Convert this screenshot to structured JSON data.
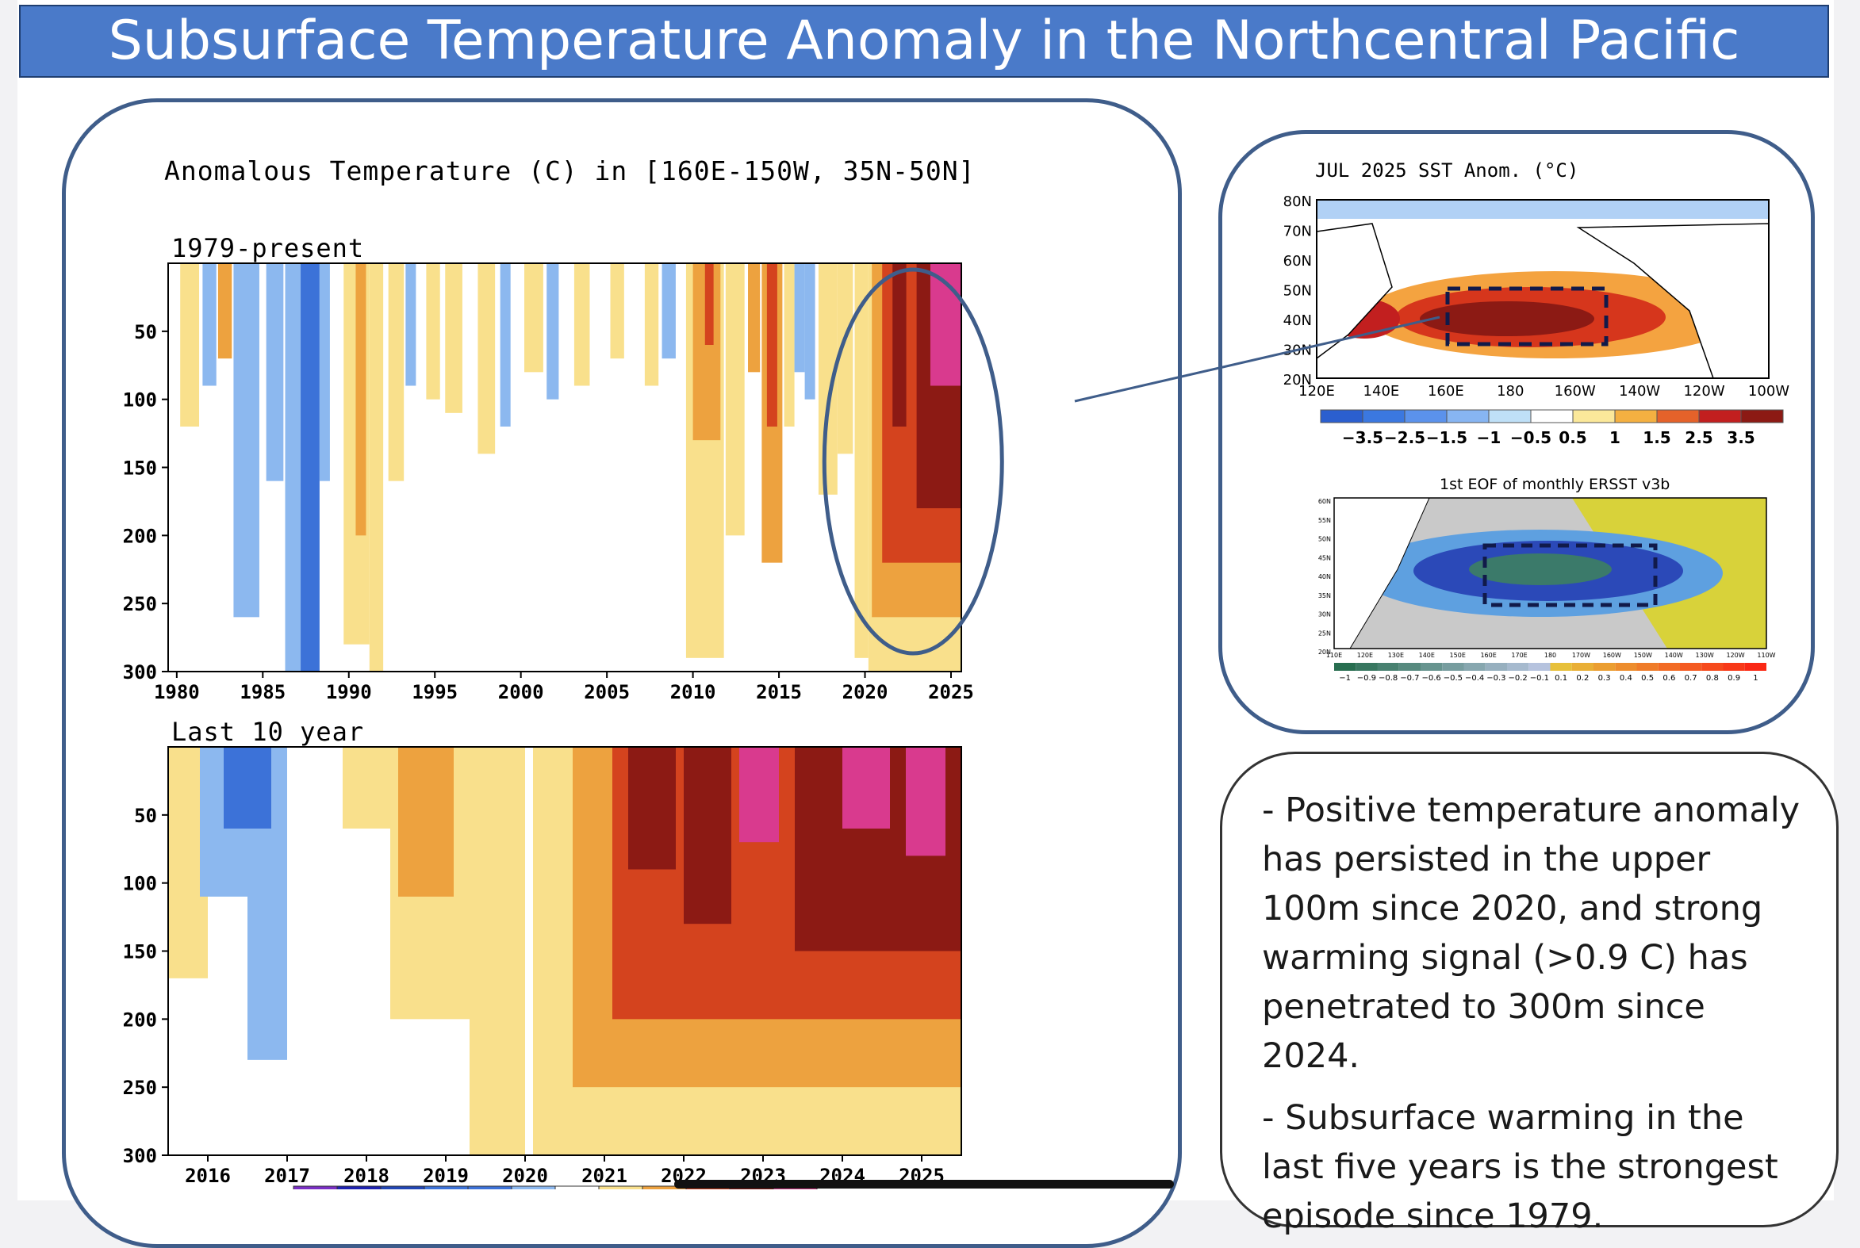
{
  "slide": {
    "title": "Subsurface Temperature Anomaly in the Northcentral Pacific"
  },
  "main_panel": {
    "header": "Anomalous Temperature (C) in [160E-150W, 35N-50N]"
  },
  "colors": {
    "warm1": "#f9e08c",
    "warm2": "#eda23f",
    "warm3": "#d4431e",
    "warm4": "#8c1a14",
    "warm5": "#d93a8e",
    "cool1": "#8cb8ef",
    "cool2": "#3c72d8",
    "cool3": "#2246b4",
    "cool4": "#1e22b0",
    "cool5": "#7a2fc4",
    "frame": "#3f5d8a",
    "title_bg": "#4a7ac9"
  },
  "chart_data": [
    {
      "type": "heatmap",
      "title": "1979-present",
      "x_axis_years": [
        "1980",
        "1985",
        "1990",
        "1995",
        "2000",
        "2005",
        "2010",
        "2015",
        "2020",
        "2025"
      ],
      "xlim": [
        1979.5,
        2025.6
      ],
      "y_depth_ticks": [
        "50",
        "100",
        "150",
        "200",
        "250",
        "300"
      ],
      "ylim": [
        0,
        300
      ],
      "highlight": "ellipse around 2020-2025",
      "bands": [
        {
          "x0": 1980.2,
          "x1": 1981.3,
          "depth": 120,
          "level": 1
        },
        {
          "x0": 1981.5,
          "x1": 1982.3,
          "depth": 90,
          "level": -1
        },
        {
          "x0": 1982.4,
          "x1": 1983.2,
          "depth": 70,
          "level": 2
        },
        {
          "x0": 1983.3,
          "x1": 1984.8,
          "depth": 260,
          "level": -1
        },
        {
          "x0": 1985.2,
          "x1": 1986.2,
          "depth": 160,
          "level": -1
        },
        {
          "x0": 1986.3,
          "x1": 1987.2,
          "depth": 300,
          "level": -1
        },
        {
          "x0": 1987.2,
          "x1": 1988.3,
          "depth": 300,
          "level": -2
        },
        {
          "x0": 1988.3,
          "x1": 1988.9,
          "depth": 160,
          "level": -1
        },
        {
          "x0": 1989.7,
          "x1": 1991.2,
          "depth": 280,
          "level": 1
        },
        {
          "x0": 1990.4,
          "x1": 1991.0,
          "depth": 200,
          "level": 2
        },
        {
          "x0": 1991.2,
          "x1": 1992.0,
          "depth": 300,
          "level": 1
        },
        {
          "x0": 1992.3,
          "x1": 1993.2,
          "depth": 160,
          "level": 1
        },
        {
          "x0": 1993.3,
          "x1": 1993.9,
          "depth": 90,
          "level": -1
        },
        {
          "x0": 1994.5,
          "x1": 1995.3,
          "depth": 100,
          "level": 1
        },
        {
          "x0": 1995.6,
          "x1": 1996.6,
          "depth": 110,
          "level": 1
        },
        {
          "x0": 1997.5,
          "x1": 1998.5,
          "depth": 140,
          "level": 1
        },
        {
          "x0": 1998.8,
          "x1": 1999.4,
          "depth": 120,
          "level": -1
        },
        {
          "x0": 2000.2,
          "x1": 2001.3,
          "depth": 80,
          "level": 1
        },
        {
          "x0": 2001.5,
          "x1": 2002.2,
          "depth": 100,
          "level": -1
        },
        {
          "x0": 2003.1,
          "x1": 2004.0,
          "depth": 90,
          "level": 1
        },
        {
          "x0": 2005.2,
          "x1": 2006.0,
          "depth": 70,
          "level": 1
        },
        {
          "x0": 2007.2,
          "x1": 2008.0,
          "depth": 90,
          "level": 1
        },
        {
          "x0": 2008.2,
          "x1": 2009.0,
          "depth": 70,
          "level": -1
        },
        {
          "x0": 2009.6,
          "x1": 2011.8,
          "depth": 290,
          "level": 1
        },
        {
          "x0": 2010.0,
          "x1": 2011.6,
          "depth": 130,
          "level": 2
        },
        {
          "x0": 2010.7,
          "x1": 2011.2,
          "depth": 60,
          "level": 3
        },
        {
          "x0": 2011.9,
          "x1": 2013.0,
          "depth": 200,
          "level": 1
        },
        {
          "x0": 2013.2,
          "x1": 2013.9,
          "depth": 80,
          "level": 2
        },
        {
          "x0": 2014.0,
          "x1": 2015.2,
          "depth": 220,
          "level": 2
        },
        {
          "x0": 2014.3,
          "x1": 2014.9,
          "depth": 120,
          "level": 3
        },
        {
          "x0": 2015.3,
          "x1": 2015.9,
          "depth": 120,
          "level": 1
        },
        {
          "x0": 2015.9,
          "x1": 2016.5,
          "depth": 80,
          "level": -1
        },
        {
          "x0": 2016.5,
          "x1": 2017.1,
          "depth": 100,
          "level": -1
        },
        {
          "x0": 2017.3,
          "x1": 2018.4,
          "depth": 170,
          "level": 1
        },
        {
          "x0": 2018.4,
          "x1": 2019.3,
          "depth": 140,
          "level": 1
        },
        {
          "x0": 2019.4,
          "x1": 2020.2,
          "depth": 290,
          "level": 1
        },
        {
          "x0": 2020.2,
          "x1": 2025.6,
          "depth": 300,
          "level": 1
        },
        {
          "x0": 2020.4,
          "x1": 2025.6,
          "depth": 260,
          "level": 2
        },
        {
          "x0": 2021.0,
          "x1": 2025.6,
          "depth": 220,
          "level": 3
        },
        {
          "x0": 2021.6,
          "x1": 2022.4,
          "depth": 120,
          "level": 4
        },
        {
          "x0": 2023.0,
          "x1": 2025.6,
          "depth": 180,
          "level": 4
        },
        {
          "x0": 2023.8,
          "x1": 2025.6,
          "depth": 90,
          "level": 5
        }
      ]
    },
    {
      "type": "heatmap",
      "title": "Last 10 year",
      "x_axis_years": [
        "2016",
        "2017",
        "2018",
        "2019",
        "2020",
        "2021",
        "2022",
        "2023",
        "2024",
        "2025"
      ],
      "xlim": [
        2015.5,
        2025.5
      ],
      "y_depth_ticks": [
        "50",
        "100",
        "150",
        "200",
        "250",
        "300"
      ],
      "ylim": [
        0,
        300
      ],
      "bands": [
        {
          "x0": 2015.5,
          "x1": 2016.0,
          "depth": 170,
          "level": 1
        },
        {
          "x0": 2015.9,
          "x1": 2016.5,
          "depth": 110,
          "level": -1
        },
        {
          "x0": 2016.5,
          "x1": 2017.0,
          "depth": 230,
          "level": -1
        },
        {
          "x0": 2016.2,
          "x1": 2016.8,
          "depth": 60,
          "level": -2
        },
        {
          "x0": 2017.7,
          "x1": 2018.3,
          "depth": 60,
          "level": 1
        },
        {
          "x0": 2018.3,
          "x1": 2019.3,
          "depth": 200,
          "level": 1
        },
        {
          "x0": 2018.4,
          "x1": 2019.1,
          "depth": 110,
          "level": 2
        },
        {
          "x0": 2019.3,
          "x1": 2019.8,
          "depth": 90,
          "level": 1
        },
        {
          "x0": 2019.3,
          "x1": 2020.0,
          "depth": 300,
          "level": 1
        },
        {
          "x0": 2020.1,
          "x1": 2025.5,
          "depth": 300,
          "level": 1
        },
        {
          "x0": 2020.6,
          "x1": 2025.5,
          "depth": 250,
          "level": 2
        },
        {
          "x0": 2021.1,
          "x1": 2025.5,
          "depth": 200,
          "level": 3
        },
        {
          "x0": 2021.3,
          "x1": 2021.9,
          "depth": 90,
          "level": 4
        },
        {
          "x0": 2022.0,
          "x1": 2022.6,
          "depth": 130,
          "level": 4
        },
        {
          "x0": 2022.7,
          "x1": 2023.2,
          "depth": 70,
          "level": 5
        },
        {
          "x0": 2023.4,
          "x1": 2025.5,
          "depth": 150,
          "level": 4
        },
        {
          "x0": 2024.0,
          "x1": 2024.6,
          "depth": 60,
          "level": 5
        },
        {
          "x0": 2024.8,
          "x1": 2025.3,
          "depth": 80,
          "level": 5
        }
      ]
    }
  ],
  "inset_sst": {
    "title": "JUL 2025 SST Anom. (°C)",
    "lat_labels": [
      "80N",
      "70N",
      "60N",
      "50N",
      "40N",
      "30N",
      "20N"
    ],
    "lon_labels": [
      "120E",
      "140E",
      "160E",
      "180",
      "160W",
      "140W",
      "120W",
      "100W"
    ],
    "colorbar_labels": [
      "−3.5",
      "−2.5",
      "−1.5",
      "−1",
      "−0.5",
      "0.5",
      "1",
      "1.5",
      "2.5",
      "3.5"
    ]
  },
  "inset_eof": {
    "title": "1st EOF of monthly ERSST v3b",
    "lat_labels": [
      "60N",
      "55N",
      "50N",
      "45N",
      "40N",
      "35N",
      "30N",
      "25N",
      "20N"
    ],
    "lon_labels": [
      "110E",
      "120E",
      "130E",
      "140E",
      "150E",
      "160E",
      "170E",
      "180",
      "170W",
      "160W",
      "150W",
      "140W",
      "130W",
      "120W",
      "110W"
    ],
    "colorbar_labels": [
      "−1",
      "−0.9",
      "−0.8",
      "−0.7",
      "−0.6",
      "−0.5",
      "−0.4",
      "−0.3",
      "−0.2",
      "−0.1",
      "0.1",
      "0.2",
      "0.3",
      "0.4",
      "0.5",
      "0.6",
      "0.7",
      "0.8",
      "0.9",
      "1"
    ]
  },
  "notes": {
    "bullet1": "-   Positive temperature anomaly has persisted in the upper 100m since 2020, and strong warming signal (>0.9 C) has penetrated to 300m since 2024.",
    "bullet2": "- Subsurface warming in the last five years is the strongest episode since 1979."
  }
}
